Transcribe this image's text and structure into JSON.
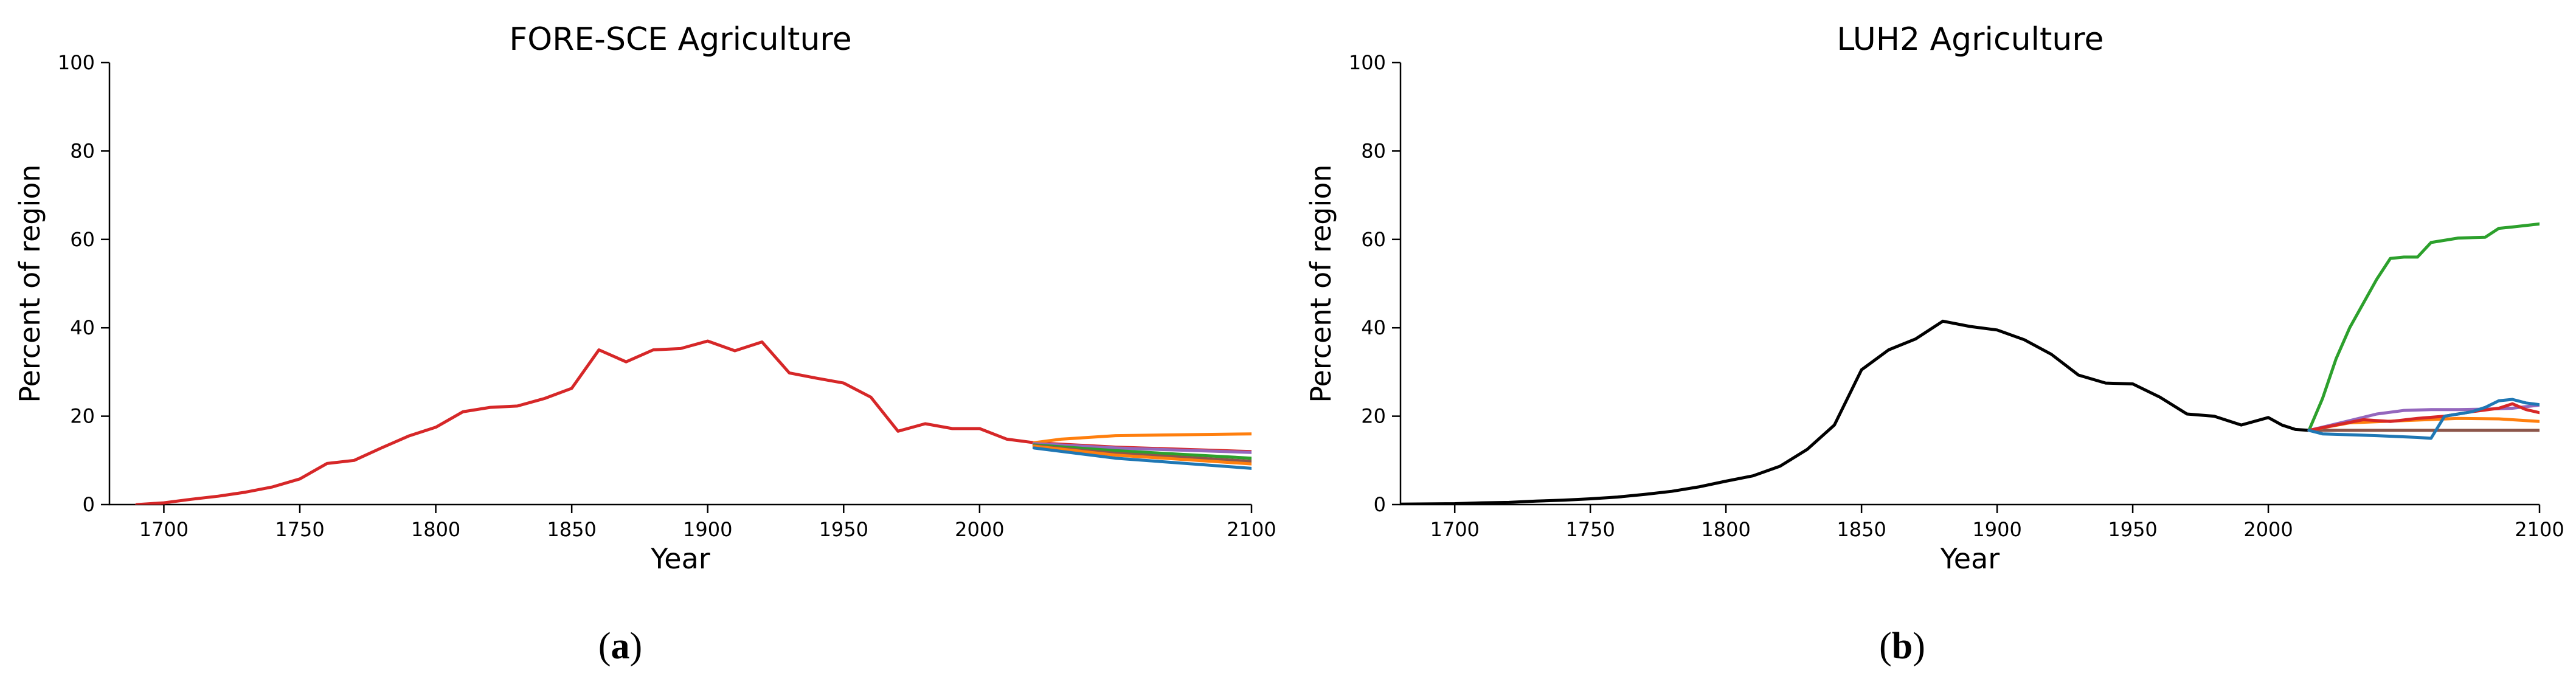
{
  "chart_data": [
    {
      "type": "line",
      "panel_label": "a",
      "title": "FORE-SCE Agriculture",
      "xlabel": "Year",
      "ylabel": "Percent of region",
      "xlim": [
        1680,
        2100
      ],
      "ylim": [
        0,
        100
      ],
      "xticks": [
        "1700",
        "1750",
        "1800",
        "1850",
        "1900",
        "1950",
        "2000",
        "2100"
      ],
      "yticks": [
        "0",
        "20",
        "40",
        "60",
        "80",
        "100"
      ],
      "grid": false,
      "series": [
        {
          "color": "#d62728",
          "points": [
            [
              1690,
              0
            ],
            [
              1700,
              0.4
            ],
            [
              1710,
              1.2
            ],
            [
              1720,
              1.9
            ],
            [
              1730,
              2.8
            ],
            [
              1740,
              4
            ],
            [
              1750,
              5.8
            ],
            [
              1760,
              9.3
            ],
            [
              1770,
              10
            ],
            [
              1780,
              12.8
            ],
            [
              1790,
              15.5
            ],
            [
              1800,
              17.5
            ],
            [
              1810,
              21
            ],
            [
              1820,
              22
            ],
            [
              1830,
              22.3
            ],
            [
              1840,
              24
            ],
            [
              1850,
              26.3
            ],
            [
              1860,
              35
            ],
            [
              1870,
              32.3
            ],
            [
              1880,
              35
            ],
            [
              1890,
              35.3
            ],
            [
              1900,
              37
            ],
            [
              1910,
              34.8
            ],
            [
              1920,
              36.8
            ],
            [
              1930,
              29.8
            ],
            [
              1940,
              28.6
            ],
            [
              1950,
              27.5
            ],
            [
              1960,
              24.3
            ],
            [
              1970,
              16.6
            ],
            [
              1980,
              18.3
            ],
            [
              1990,
              17.2
            ],
            [
              2000,
              17.2
            ],
            [
              2010,
              14.8
            ],
            [
              2020,
              14
            ],
            [
              2050,
              13
            ],
            [
              2100,
              12
            ]
          ]
        },
        {
          "color": "#ff7f0e",
          "points": [
            [
              2020,
              14
            ],
            [
              2030,
              14.8
            ],
            [
              2050,
              15.6
            ],
            [
              2100,
              16
            ]
          ]
        },
        {
          "color": "#9467bd",
          "points": [
            [
              2020,
              13.8
            ],
            [
              2050,
              12.8
            ],
            [
              2100,
              11.8
            ]
          ]
        },
        {
          "color": "#2ca02c",
          "points": [
            [
              2020,
              13.5
            ],
            [
              2050,
              12.2
            ],
            [
              2100,
              10.5
            ]
          ]
        },
        {
          "color": "#8c564b",
          "points": [
            [
              2020,
              13.3
            ],
            [
              2050,
              11.6
            ],
            [
              2100,
              9.8
            ]
          ]
        },
        {
          "color": "#ff7f0e",
          "points": [
            [
              2020,
              13.2
            ],
            [
              2050,
              11.2
            ],
            [
              2100,
              9.2
            ]
          ]
        },
        {
          "color": "#1f77b4",
          "points": [
            [
              2020,
              12.8
            ],
            [
              2050,
              10.5
            ],
            [
              2100,
              8.2
            ]
          ]
        }
      ]
    },
    {
      "type": "line",
      "panel_label": "b",
      "title": "LUH2 Agriculture",
      "xlabel": "Year",
      "ylabel": "Percent of region",
      "xlim": [
        1680,
        2100
      ],
      "ylim": [
        0,
        100
      ],
      "xticks": [
        "1700",
        "1750",
        "1800",
        "1850",
        "1900",
        "1950",
        "2000",
        "2100"
      ],
      "yticks": [
        "0",
        "20",
        "40",
        "60",
        "80",
        "100"
      ],
      "grid": false,
      "series": [
        {
          "color": "#000000",
          "points": [
            [
              1680,
              0.1
            ],
            [
              1700,
              0.2
            ],
            [
              1710,
              0.4
            ],
            [
              1720,
              0.5
            ],
            [
              1730,
              0.8
            ],
            [
              1740,
              1
            ],
            [
              1750,
              1.3
            ],
            [
              1760,
              1.7
            ],
            [
              1770,
              2.3
            ],
            [
              1780,
              3
            ],
            [
              1790,
              4
            ],
            [
              1800,
              5.3
            ],
            [
              1810,
              6.5
            ],
            [
              1820,
              8.7
            ],
            [
              1830,
              12.5
            ],
            [
              1840,
              18
            ],
            [
              1850,
              30.5
            ],
            [
              1860,
              35
            ],
            [
              1870,
              37.5
            ],
            [
              1880,
              41.5
            ],
            [
              1890,
              40.3
            ],
            [
              1900,
              39.5
            ],
            [
              1910,
              37.3
            ],
            [
              1920,
              34
            ],
            [
              1930,
              29.3
            ],
            [
              1940,
              27.5
            ],
            [
              1950,
              27.3
            ],
            [
              1960,
              24.3
            ],
            [
              1970,
              20.5
            ],
            [
              1980,
              20
            ],
            [
              1990,
              18
            ],
            [
              2000,
              19.7
            ],
            [
              2005,
              18
            ],
            [
              2010,
              17
            ],
            [
              2015,
              16.8
            ]
          ]
        },
        {
          "color": "#2ca02c",
          "points": [
            [
              2015,
              16.8
            ],
            [
              2020,
              24
            ],
            [
              2025,
              33
            ],
            [
              2030,
              40
            ],
            [
              2040,
              51
            ],
            [
              2045,
              55.7
            ],
            [
              2050,
              56
            ],
            [
              2055,
              56
            ],
            [
              2060,
              59.3
            ],
            [
              2070,
              60.3
            ],
            [
              2080,
              60.5
            ],
            [
              2085,
              62.5
            ],
            [
              2090,
              62.8
            ],
            [
              2100,
              63.5
            ]
          ]
        },
        {
          "color": "#8c564b",
          "points": [
            [
              2015,
              16.8
            ],
            [
              2100,
              16.8
            ]
          ]
        },
        {
          "color": "#ff7f0e",
          "points": [
            [
              2015,
              16.8
            ],
            [
              2030,
              18.5
            ],
            [
              2050,
              19
            ],
            [
              2070,
              19.5
            ],
            [
              2085,
              19.4
            ],
            [
              2100,
              18.8
            ]
          ]
        },
        {
          "color": "#9467bd",
          "points": [
            [
              2015,
              16.8
            ],
            [
              2030,
              19
            ],
            [
              2040,
              20.5
            ],
            [
              2050,
              21.3
            ],
            [
              2060,
              21.5
            ],
            [
              2070,
              21.5
            ],
            [
              2080,
              21.6
            ],
            [
              2090,
              21.8
            ],
            [
              2100,
              22.5
            ]
          ]
        },
        {
          "color": "#d62728",
          "points": [
            [
              2015,
              16.8
            ],
            [
              2025,
              18
            ],
            [
              2035,
              19.2
            ],
            [
              2045,
              18.8
            ],
            [
              2055,
              19.5
            ],
            [
              2065,
              20
            ],
            [
              2075,
              21
            ],
            [
              2085,
              21.8
            ],
            [
              2090,
              22.8
            ],
            [
              2095,
              21.5
            ],
            [
              2100,
              20.8
            ]
          ]
        },
        {
          "color": "#1f77b4",
          "points": [
            [
              2015,
              16.8
            ],
            [
              2020,
              16
            ],
            [
              2030,
              15.8
            ],
            [
              2040,
              15.6
            ],
            [
              2055,
              15.2
            ],
            [
              2060,
              15
            ],
            [
              2065,
              20
            ],
            [
              2070,
              20.5
            ],
            [
              2075,
              21
            ],
            [
              2080,
              22
            ],
            [
              2085,
              23.5
            ],
            [
              2090,
              23.8
            ],
            [
              2095,
              23
            ],
            [
              2100,
              22.6
            ]
          ]
        }
      ]
    }
  ]
}
